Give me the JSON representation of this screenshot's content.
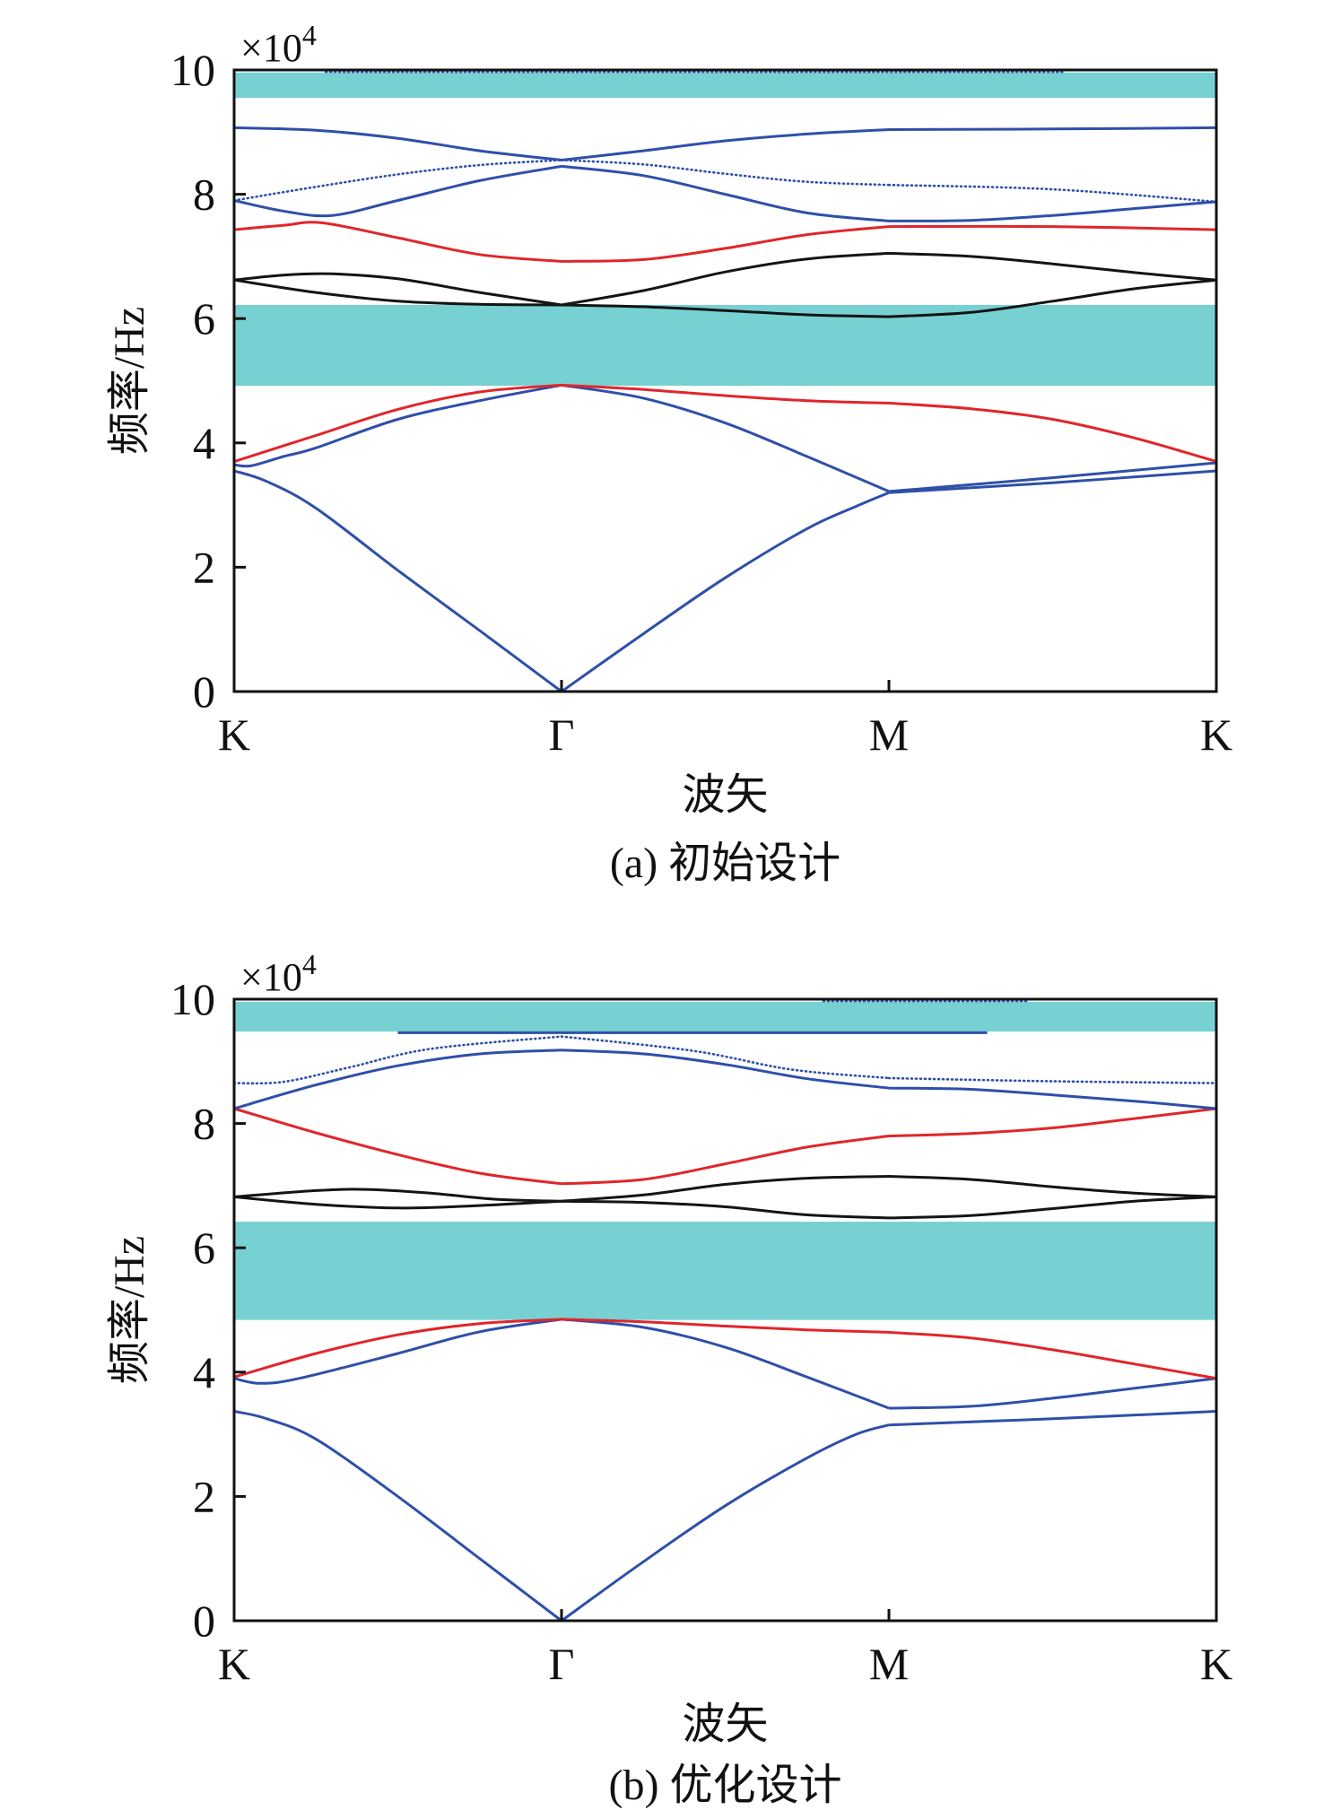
{
  "chart_data": [
    {
      "type": "line",
      "caption": "(a) 初始设计",
      "xlabel": "波矢",
      "ylabel": "频率/Hz",
      "y_multiplier": "×10",
      "y_multiplier_exponent": "4",
      "xlim": [
        0,
        3
      ],
      "ylim": [
        0,
        10
      ],
      "x_ticks": [
        0,
        1,
        2,
        3
      ],
      "x_tick_labels": [
        "K",
        "Γ",
        "M",
        "K"
      ],
      "y_ticks": [
        0,
        2,
        4,
        6,
        8,
        10
      ],
      "y_tick_labels": [
        "0",
        "2",
        "4",
        "6",
        "8",
        "10"
      ],
      "grid": false,
      "band_gaps": [
        {
          "from": 4.92,
          "to": 6.22,
          "color": "#77D0D2"
        },
        {
          "from": 9.55,
          "to": 9.96,
          "color": "#77D0D2"
        }
      ],
      "series": [
        {
          "color": "#2F4FA8",
          "linestyle": "solid",
          "x": [
            0,
            0.1,
            0.25,
            0.5,
            0.75,
            1,
            1.25,
            1.5,
            1.75,
            1.9,
            2,
            2.5,
            3
          ],
          "y": [
            3.55,
            3.38,
            2.95,
            1.95,
            0.98,
            0,
            0.93,
            1.83,
            2.62,
            2.98,
            3.2,
            3.36,
            3.55
          ]
        },
        {
          "color": "#2F4FA8",
          "linestyle": "solid",
          "x": [
            0,
            0.05,
            0.15,
            0.25,
            0.5,
            0.75,
            1,
            1.25,
            1.5,
            1.75,
            2,
            2.5,
            3
          ],
          "y": [
            3.65,
            3.63,
            3.78,
            3.92,
            4.38,
            4.68,
            4.93,
            4.72,
            4.32,
            3.78,
            3.22,
            3.44,
            3.68
          ]
        },
        {
          "color": "#E0262B",
          "linestyle": "solid",
          "x": [
            0,
            0.25,
            0.5,
            0.75,
            1,
            1.25,
            1.5,
            1.75,
            2,
            2.25,
            2.5,
            2.75,
            3
          ],
          "y": [
            3.7,
            4.12,
            4.54,
            4.82,
            4.93,
            4.86,
            4.76,
            4.68,
            4.64,
            4.55,
            4.38,
            4.08,
            3.7
          ]
        },
        {
          "color": "#141414",
          "linestyle": "solid",
          "x": [
            0,
            0.25,
            0.5,
            0.75,
            1,
            1.25,
            1.5,
            1.75,
            2,
            2.25,
            2.5,
            2.75,
            3
          ],
          "y": [
            6.62,
            6.42,
            6.28,
            6.23,
            6.22,
            6.19,
            6.13,
            6.06,
            6.03,
            6.1,
            6.28,
            6.48,
            6.62
          ]
        },
        {
          "color": "#141414",
          "linestyle": "solid",
          "x": [
            0,
            0.15,
            0.3,
            0.5,
            0.75,
            1,
            1.25,
            1.5,
            1.75,
            2,
            2.25,
            2.5,
            2.75,
            3
          ],
          "y": [
            6.62,
            6.7,
            6.72,
            6.64,
            6.42,
            6.22,
            6.45,
            6.75,
            6.96,
            7.05,
            7.0,
            6.88,
            6.74,
            6.62
          ]
        },
        {
          "color": "#E0262B",
          "linestyle": "solid",
          "x": [
            0,
            0.15,
            0.27,
            0.5,
            0.75,
            1,
            1.25,
            1.5,
            1.75,
            2,
            2.5,
            3
          ],
          "y": [
            7.43,
            7.5,
            7.54,
            7.3,
            7.03,
            6.92,
            6.95,
            7.13,
            7.35,
            7.48,
            7.48,
            7.43
          ]
        },
        {
          "color": "#2F4FA8",
          "linestyle": "solid",
          "x": [
            0,
            0.15,
            0.3,
            0.5,
            0.75,
            1,
            1.25,
            1.5,
            1.75,
            2,
            2.25,
            2.5,
            2.75,
            3
          ],
          "y": [
            7.9,
            7.73,
            7.66,
            7.9,
            8.22,
            8.45,
            8.3,
            8.0,
            7.7,
            7.57,
            7.58,
            7.66,
            7.77,
            7.88
          ]
        },
        {
          "color": "#2F4FA8",
          "linestyle": "dotted",
          "x": [
            0,
            0.25,
            0.5,
            0.75,
            1,
            1.25,
            1.5,
            1.75,
            2,
            2.5,
            3
          ],
          "y": [
            7.9,
            8.12,
            8.32,
            8.47,
            8.55,
            8.48,
            8.33,
            8.2,
            8.15,
            8.08,
            7.88
          ]
        },
        {
          "color": "#2F4FA8",
          "linestyle": "solid",
          "x": [
            0,
            0.25,
            0.5,
            0.75,
            1,
            1.25,
            1.5,
            1.75,
            2,
            2.5,
            3
          ],
          "y": [
            9.07,
            9.03,
            8.9,
            8.7,
            8.55,
            8.7,
            8.86,
            8.97,
            9.04,
            9.05,
            9.07
          ]
        },
        {
          "color": "#2F4FA8",
          "linestyle": "dotted",
          "x": [
            0.28,
            2.53
          ],
          "y": [
            9.97,
            9.97
          ]
        }
      ]
    },
    {
      "type": "line",
      "caption": "(b) 优化设计",
      "xlabel": "波矢",
      "ylabel": "频率/Hz",
      "y_multiplier": "×10",
      "y_multiplier_exponent": "4",
      "xlim": [
        0,
        3
      ],
      "ylim": [
        0,
        10
      ],
      "x_ticks": [
        0,
        1,
        2,
        3
      ],
      "x_tick_labels": [
        "K",
        "Γ",
        "M",
        "K"
      ],
      "y_ticks": [
        0,
        2,
        4,
        6,
        8,
        10
      ],
      "y_tick_labels": [
        "0",
        "2",
        "4",
        "6",
        "8",
        "10"
      ],
      "grid": false,
      "band_gaps": [
        {
          "from": 4.84,
          "to": 6.42,
          "color": "#77D0D2"
        },
        {
          "from": 9.48,
          "to": 9.96,
          "color": "#77D0D2"
        }
      ],
      "series": [
        {
          "color": "#2F4FA8",
          "linestyle": "solid",
          "x": [
            0,
            0.1,
            0.25,
            0.5,
            0.75,
            1,
            1.25,
            1.5,
            1.75,
            1.9,
            2,
            2.5,
            3
          ],
          "y": [
            3.37,
            3.25,
            2.92,
            2.0,
            1.0,
            0,
            0.95,
            1.85,
            2.62,
            3.0,
            3.15,
            3.25,
            3.37
          ]
        },
        {
          "color": "#2F4FA8",
          "linestyle": "solid",
          "x": [
            0,
            0.08,
            0.2,
            0.5,
            0.75,
            1,
            1.25,
            1.5,
            1.75,
            2,
            2.25,
            2.5,
            2.75,
            3
          ],
          "y": [
            3.9,
            3.82,
            3.9,
            4.3,
            4.65,
            4.85,
            4.72,
            4.4,
            3.92,
            3.42,
            3.45,
            3.58,
            3.74,
            3.9
          ]
        },
        {
          "color": "#E0262B",
          "linestyle": "solid",
          "x": [
            0,
            0.25,
            0.5,
            0.75,
            1,
            1.25,
            1.5,
            1.75,
            2,
            2.25,
            2.5,
            2.75,
            3
          ],
          "y": [
            3.92,
            4.3,
            4.6,
            4.78,
            4.85,
            4.81,
            4.74,
            4.68,
            4.64,
            4.55,
            4.36,
            4.13,
            3.9
          ]
        },
        {
          "color": "#141414",
          "linestyle": "solid",
          "x": [
            0,
            0.25,
            0.5,
            0.75,
            1,
            1.25,
            1.5,
            1.75,
            2,
            2.25,
            2.5,
            2.75,
            3
          ],
          "y": [
            6.82,
            6.7,
            6.64,
            6.68,
            6.75,
            6.73,
            6.66,
            6.53,
            6.48,
            6.52,
            6.63,
            6.75,
            6.82
          ]
        },
        {
          "color": "#141414",
          "linestyle": "solid",
          "x": [
            0,
            0.25,
            0.4,
            0.6,
            0.8,
            1,
            1.25,
            1.5,
            1.75,
            2,
            2.25,
            2.5,
            2.75,
            3
          ],
          "y": [
            6.82,
            6.92,
            6.94,
            6.88,
            6.78,
            6.75,
            6.85,
            7.02,
            7.12,
            7.15,
            7.1,
            6.98,
            6.88,
            6.82
          ]
        },
        {
          "color": "#E0262B",
          "linestyle": "solid",
          "x": [
            0,
            0.25,
            0.5,
            0.75,
            1,
            1.25,
            1.5,
            1.75,
            2,
            2.25,
            2.5,
            2.75,
            3
          ],
          "y": [
            8.24,
            7.85,
            7.5,
            7.2,
            7.03,
            7.1,
            7.35,
            7.62,
            7.8,
            7.84,
            7.93,
            8.08,
            8.24
          ]
        },
        {
          "color": "#2F4FA8",
          "linestyle": "solid",
          "x": [
            0,
            0.25,
            0.5,
            0.75,
            1,
            1.25,
            1.5,
            1.75,
            2,
            2.25,
            2.5,
            2.75,
            3
          ],
          "y": [
            8.24,
            8.62,
            8.93,
            9.12,
            9.18,
            9.12,
            8.95,
            8.72,
            8.57,
            8.55,
            8.46,
            8.36,
            8.24
          ]
        },
        {
          "color": "#2F4FA8",
          "linestyle": "dotted",
          "x": [
            0,
            0.15,
            0.35,
            0.6,
            1,
            1.4,
            1.7,
            2,
            2.5,
            3
          ],
          "y": [
            8.65,
            8.67,
            8.9,
            9.2,
            9.4,
            9.17,
            8.87,
            8.73,
            8.68,
            8.65
          ]
        },
        {
          "color": "#2F4FA8",
          "linestyle": "solid",
          "x": [
            0.5,
            2.3
          ],
          "y": [
            9.46,
            9.46
          ]
        },
        {
          "color": "#2F4FA8",
          "linestyle": "dotted",
          "x": [
            1.8,
            2.43
          ],
          "y": [
            9.97,
            9.97
          ]
        }
      ]
    }
  ]
}
